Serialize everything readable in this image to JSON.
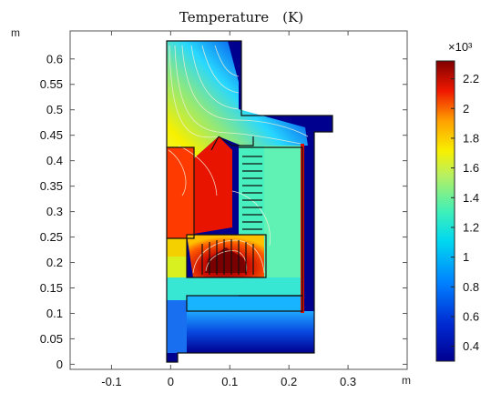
{
  "chart_data": {
    "type": "heatmap",
    "title": "Temperature　(K)",
    "x_unit": "m",
    "y_unit": "m",
    "xlim": [
      -0.17,
      0.4
    ],
    "ylim": [
      -0.01,
      0.655
    ],
    "x_ticks": [
      -0.1,
      0,
      0.1,
      0.2,
      0.3
    ],
    "x_tick_labels": [
      "-0.1",
      "0",
      "0.1",
      "0.2",
      "0.3"
    ],
    "y_ticks": [
      0,
      0.05,
      0.1,
      0.15,
      0.2,
      0.25,
      0.3,
      0.35,
      0.4,
      0.45,
      0.5,
      0.55,
      0.6
    ],
    "y_tick_labels": [
      "0",
      "0.05",
      "0.1",
      "0.15",
      "0.2",
      "0.25",
      "0.3",
      "0.35",
      "0.4",
      "0.45",
      "0.5",
      "0.55",
      "0.6"
    ],
    "grid": false,
    "colorbar": {
      "multiplier_label": "×10³",
      "range": [
        0.3,
        2.32
      ],
      "ticks": [
        0.4,
        0.6,
        0.8,
        1,
        1.2,
        1.4,
        1.6,
        1.8,
        2,
        2.2
      ],
      "tick_labels": [
        "0.4",
        "0.6",
        "0.8",
        "1",
        "1.2",
        "1.4",
        "1.6",
        "1.8",
        "2",
        "2.2"
      ],
      "colormap": "rainbow (dark blue → cyan → green → yellow → orange → dark red)"
    },
    "regions": [
      {
        "name": "outer-boundary",
        "temperature_kK": 0.3
      },
      {
        "name": "gas-plume-above-heater",
        "temperature_kK": 1.5
      },
      {
        "name": "left-hot-zone",
        "temperature_kK": 2.2
      },
      {
        "name": "right-insulation-block",
        "temperature_kK": 1.22
      },
      {
        "name": "melt-crucible",
        "temperature_kK": 2.25
      },
      {
        "name": "bottom-insulation-strip",
        "temperature_kK": 0.95
      },
      {
        "name": "left-lower-block",
        "temperature_kK": 1.45
      }
    ]
  }
}
